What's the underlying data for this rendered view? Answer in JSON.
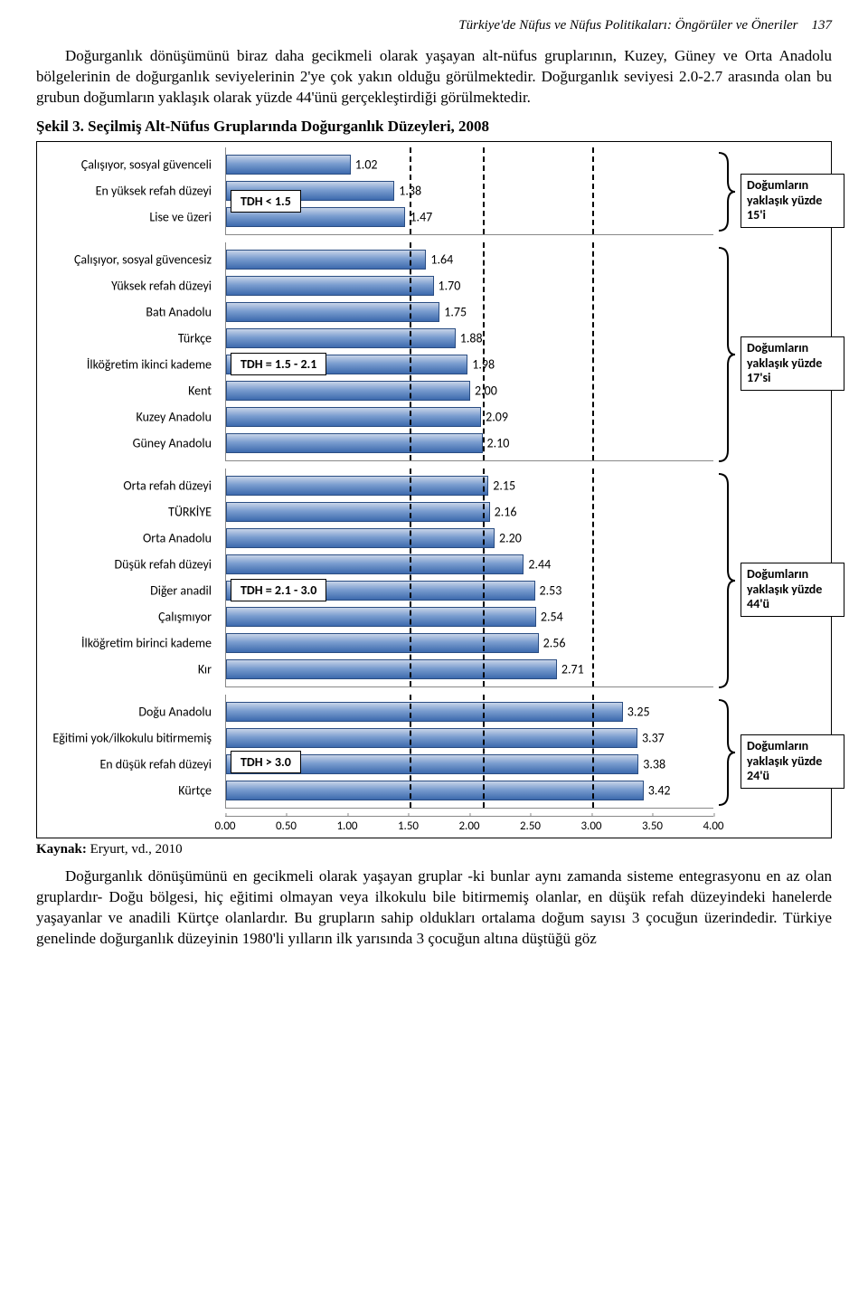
{
  "header": {
    "text": "Türkiye'de Nüfus ve Nüfus Politikaları: Öngörüler ve Öneriler",
    "page": "137"
  },
  "intro_para": "Doğurganlık dönüşümünü biraz daha gecikmeli olarak yaşayan alt-nüfus gruplarının, Kuzey, Güney ve Orta Anadolu bölgelerinin de doğurganlık seviyelerinin 2'ye çok yakın olduğu görülmektedir. Doğurganlık seviyesi 2.0-2.7 arasında olan bu grubun doğumların yaklaşık olarak yüzde 44'ünü gerçekleştirdiği görülmektedir.",
  "fig_title": "Şekil 3. Seçilmiş Alt-Nüfus Gruplarında Doğurganlık Düzeyleri, 2008",
  "chart": {
    "x_max": 4.0,
    "ticks": [
      "0.00",
      "0.50",
      "1.00",
      "1.50",
      "2.00",
      "2.50",
      "3.00",
      "3.50",
      "4.00"
    ],
    "dash_positions": [
      1.5,
      2.1,
      3.0
    ],
    "panels": [
      {
        "tdh": "TDH < 1.5",
        "ann": "Doğumların yaklaşık yüzde 15'i",
        "rows": [
          {
            "label": "Çalışıyor, sosyal güvenceli",
            "val": 1.02
          },
          {
            "label": "En yüksek refah düzeyi",
            "val": 1.38
          },
          {
            "label": "Lise ve üzeri",
            "val": 1.47
          }
        ]
      },
      {
        "tdh": "TDH = 1.5 - 2.1",
        "ann": "Doğumların yaklaşık yüzde 17'si",
        "rows": [
          {
            "label": "Çalışıyor, sosyal güvencesiz",
            "val": 1.64
          },
          {
            "label": "Yüksek refah düzeyi",
            "val": 1.7
          },
          {
            "label": "Batı Anadolu",
            "val": 1.75
          },
          {
            "label": "Türkçe",
            "val": 1.88
          },
          {
            "label": "İlköğretim ikinci kademe",
            "val": 1.98
          },
          {
            "label": "Kent",
            "val": 2.0
          },
          {
            "label": "Kuzey Anadolu",
            "val": 2.09
          },
          {
            "label": "Güney Anadolu",
            "val": 2.1
          }
        ]
      },
      {
        "tdh": "TDH = 2.1 - 3.0",
        "ann": "Doğumların yaklaşık yüzde 44'ü",
        "rows": [
          {
            "label": "Orta refah düzeyi",
            "val": 2.15
          },
          {
            "label": "TÜRKİYE",
            "val": 2.16
          },
          {
            "label": "Orta Anadolu",
            "val": 2.2
          },
          {
            "label": "Düşük refah düzeyi",
            "val": 2.44
          },
          {
            "label": "Diğer anadil",
            "val": 2.53
          },
          {
            "label": "Çalışmıyor",
            "val": 2.54
          },
          {
            "label": "İlköğretim birinci kademe",
            "val": 2.56
          },
          {
            "label": "Kır",
            "val": 2.71
          }
        ]
      },
      {
        "tdh": "TDH > 3.0",
        "ann": "Doğumların yaklaşık yüzde 24'ü",
        "rows": [
          {
            "label": "Doğu Anadolu",
            "val": 3.25
          },
          {
            "label": "Eğitimi yok/ilkokulu bitirmemiş",
            "val": 3.37
          },
          {
            "label": "En düşük refah düzeyi",
            "val": 3.38
          },
          {
            "label": "Kürtçe",
            "val": 3.42
          }
        ]
      }
    ]
  },
  "kaynak_label": "Kaynak:",
  "kaynak_text": " Eryurt, vd., 2010",
  "outro_para": "Doğurganlık dönüşümünü en gecikmeli olarak yaşayan gruplar -ki bunlar aynı zamanda sisteme entegrasyonu en az olan gruplardır- Doğu bölgesi, hiç eğitimi olmayan veya ilkokulu bile bitirmemiş olanlar, en düşük refah düzeyindeki hanelerde yaşayanlar ve anadili Kürtçe olanlardır. Bu grupların sahip oldukları ortalama doğum sayısı 3 çocuğun üzerindedir. Türkiye genelinde doğurganlık düzeyinin 1980'li yılların ilk yarısında 3 çocuğun altına düştüğü göz"
}
